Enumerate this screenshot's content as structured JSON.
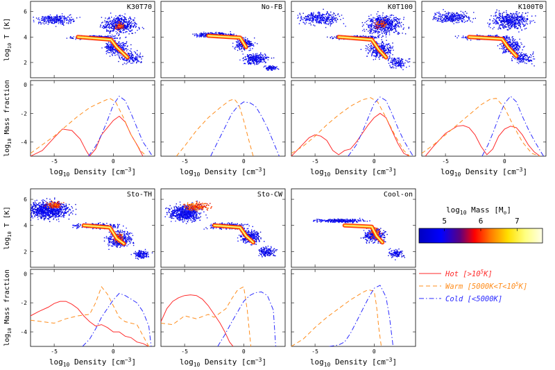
{
  "figure": {
    "colorbar": {
      "label_main": "log",
      "label_sub": "10",
      "label_rest": " Mass [M",
      "label_sun": "⊙",
      "label_close": "]",
      "ticks": [
        "5",
        "6",
        "7"
      ]
    },
    "legend": [
      {
        "label_main": "Hot [>10",
        "label_sup": "5",
        "label_end": "K]",
        "color": "#ff2a2a",
        "dash": "solid"
      },
      {
        "label_main": "Warm [5000K<T<10",
        "label_sup": "5",
        "label_end": "K]",
        "color": "#ff8c1a",
        "dash": "dashed"
      },
      {
        "label_main": "Cold [<5000K]",
        "label_sup": "",
        "label_end": "",
        "color": "#2a2aff",
        "dash": "dashdot"
      }
    ],
    "axis_text": {
      "temp_label": "log",
      "temp_sub": "10",
      "temp_rest": " T [K]",
      "frac_label": "log",
      "frac_sub": "10",
      "frac_rest": " Mass fraction",
      "x_label": "log",
      "x_sub": "10",
      "x_rest": " Density [cm",
      "x_sup": "−3",
      "x_close": "]"
    }
  },
  "chart_data": [
    {
      "type": "heatmap",
      "panel": "K30T70",
      "title": "K30T70",
      "xlim": [
        -7,
        3.5
      ],
      "ylim": [
        0.8,
        6.8
      ],
      "yticks": [
        "2",
        "4",
        "6"
      ],
      "colors": {
        "low": "#0000c0",
        "mid": "#ff3300",
        "high": "#ffffe0"
      },
      "note": "phase diagram"
    },
    {
      "type": "line",
      "panel": "K30T70",
      "xlim": [
        -7,
        3.5
      ],
      "ylim": [
        -5,
        0.3
      ],
      "xticks": [
        "-5",
        "0"
      ],
      "yticks": [
        "0",
        "-2",
        "-4"
      ],
      "series": [
        {
          "name": "Hot",
          "x": [
            -7,
            -6,
            -5,
            -4.3,
            -3.5,
            -2.8,
            -2.3,
            -2,
            -1.5,
            -1,
            -0.5,
            0,
            0.5,
            1,
            1.5,
            2,
            2.5
          ],
          "y": [
            -5,
            -4.6,
            -3.7,
            -3.1,
            -3.2,
            -3.8,
            -4.6,
            -5,
            -4.5,
            -3.5,
            -3,
            -2.5,
            -2.2,
            -2.6,
            -3.5,
            -4.2,
            -5
          ]
        },
        {
          "name": "Warm",
          "x": [
            -7,
            -6,
            -5,
            -4,
            -3,
            -2,
            -1,
            -0.3,
            0.2,
            0.8,
            1.5,
            2.3,
            2.8
          ],
          "y": [
            -4.8,
            -4.2,
            -3.6,
            -2.9,
            -2.2,
            -1.6,
            -1.2,
            -0.95,
            -1.2,
            -2.2,
            -3.5,
            -4.6,
            -5
          ]
        },
        {
          "name": "Cold",
          "x": [
            -2.1,
            -1.5,
            -1,
            -0.5,
            0,
            0.5,
            1,
            1.5,
            2,
            2.5,
            3,
            3.3
          ],
          "y": [
            -5,
            -4.3,
            -3.5,
            -2.5,
            -1.4,
            -0.8,
            -1.1,
            -2,
            -3,
            -4,
            -4.6,
            -5
          ]
        }
      ]
    },
    {
      "type": "heatmap",
      "panel": "No-FB",
      "title": "No-FB",
      "xlim": [
        -7,
        3.5
      ],
      "ylim": [
        0.8,
        6.8
      ],
      "note": "phase diagram"
    },
    {
      "type": "line",
      "panel": "No-FB",
      "xlim": [
        -7,
        3.5
      ],
      "ylim": [
        -5,
        0.3
      ],
      "xticks": [
        "-5",
        "0"
      ],
      "series": [
        {
          "name": "Warm",
          "x": [
            -5.7,
            -5,
            -4,
            -3,
            -2,
            -1.2,
            -0.8,
            -0.4,
            0,
            0.4,
            0.8
          ],
          "y": [
            -5,
            -4.3,
            -3.2,
            -2.3,
            -1.6,
            -1.1,
            -1.0,
            -1.4,
            -2.5,
            -3.8,
            -5
          ]
        },
        {
          "name": "Cold",
          "x": [
            -2.8,
            -2.2,
            -1.6,
            -1,
            -0.5,
            0,
            0.5,
            1,
            1.5,
            2,
            2.5,
            3
          ],
          "y": [
            -5,
            -4,
            -3,
            -2,
            -1.5,
            -1.2,
            -1.25,
            -1.5,
            -2.2,
            -3,
            -4,
            -5
          ]
        }
      ]
    },
    {
      "type": "heatmap",
      "panel": "K0T100",
      "title": "K0T100",
      "xlim": [
        -7,
        3.5
      ],
      "ylim": [
        0.8,
        6.8
      ],
      "note": "phase diagram"
    },
    {
      "type": "line",
      "panel": "K0T100",
      "xlim": [
        -7,
        3.5
      ],
      "ylim": [
        -5,
        0.3
      ],
      "xticks": [
        "-5",
        "0"
      ],
      "series": [
        {
          "name": "Hot",
          "x": [
            -7,
            -6.3,
            -5.5,
            -5,
            -4.5,
            -4,
            -3.5,
            -3,
            -2.5,
            -2,
            -1.5,
            -1,
            -0.5,
            0,
            0.5,
            1,
            1.5,
            2,
            2.5,
            3
          ],
          "y": [
            -5,
            -4.4,
            -3.7,
            -3.5,
            -3.6,
            -3.9,
            -4.6,
            -4.9,
            -4.6,
            -4.5,
            -4,
            -3.4,
            -2.8,
            -2.3,
            -2.0,
            -2.3,
            -3.2,
            -4.1,
            -4.8,
            -5
          ]
        },
        {
          "name": "Warm",
          "x": [
            -7,
            -6,
            -5,
            -4,
            -3,
            -2,
            -1,
            -0.3,
            0.3,
            1,
            1.8,
            2.5,
            3
          ],
          "y": [
            -4.8,
            -4.3,
            -3.6,
            -2.8,
            -2.1,
            -1.5,
            -1.05,
            -0.9,
            -1.2,
            -2.3,
            -3.6,
            -4.6,
            -5
          ]
        },
        {
          "name": "Cold",
          "x": [
            -2.2,
            -1.5,
            -1,
            -0.5,
            0,
            0.5,
            1,
            1.5,
            2,
            2.5,
            3,
            3.3
          ],
          "y": [
            -5,
            -4.2,
            -3.3,
            -2.3,
            -1.3,
            -0.85,
            -1.1,
            -2,
            -3,
            -3.9,
            -4.6,
            -5
          ]
        }
      ]
    },
    {
      "type": "heatmap",
      "panel": "K100T0",
      "title": "K100T0",
      "xlim": [
        -7,
        3.5
      ],
      "ylim": [
        0.8,
        6.8
      ],
      "note": "phase diagram"
    },
    {
      "type": "line",
      "panel": "K100T0",
      "xlim": [
        -7,
        3.5
      ],
      "ylim": [
        -5,
        0.3
      ],
      "xticks": [
        "-5",
        "0"
      ],
      "series": [
        {
          "name": "Hot",
          "x": [
            -6.7,
            -6,
            -5,
            -4,
            -3.5,
            -3,
            -2.5,
            -2,
            -1.5,
            -1,
            -0.5,
            0,
            0.5,
            1,
            1.5,
            2,
            2.5,
            3
          ],
          "y": [
            -5,
            -4.3,
            -3.4,
            -2.9,
            -2.85,
            -3.0,
            -3.5,
            -4.3,
            -4.9,
            -4.5,
            -3.6,
            -3.1,
            -2.9,
            -3.0,
            -3.5,
            -4.2,
            -4.7,
            -5
          ]
        },
        {
          "name": "Warm",
          "x": [
            -7,
            -6,
            -5,
            -4,
            -3,
            -2,
            -1.2,
            -0.7,
            0,
            0.7,
            1.5,
            2.3,
            3
          ],
          "y": [
            -4.8,
            -4.2,
            -3.5,
            -2.8,
            -2.1,
            -1.4,
            -1.0,
            -0.95,
            -1.6,
            -2.8,
            -4.0,
            -4.8,
            -5
          ]
        },
        {
          "name": "Cold",
          "x": [
            -1.9,
            -1.4,
            -1,
            -0.5,
            0,
            0.5,
            1,
            1.5,
            2,
            2.5,
            3,
            3.3
          ],
          "y": [
            -5,
            -4.2,
            -3.4,
            -2.3,
            -1.3,
            -0.8,
            -1.2,
            -2.2,
            -3.1,
            -3.9,
            -4.6,
            -5
          ]
        }
      ]
    },
    {
      "type": "heatmap",
      "panel": "Sto-TH",
      "title": "Sto-TH",
      "xlim": [
        -7,
        3.5
      ],
      "ylim": [
        0.8,
        6.8
      ],
      "yticks": [
        "2",
        "4",
        "6"
      ],
      "note": "phase diagram"
    },
    {
      "type": "line",
      "panel": "Sto-TH",
      "xlim": [
        -7,
        3.5
      ],
      "ylim": [
        -5,
        0.3
      ],
      "xticks": [
        "-5",
        "0"
      ],
      "yticks": [
        "0",
        "-2",
        "-4"
      ],
      "series": [
        {
          "name": "Hot",
          "x": [
            -7,
            -6.3,
            -5.5,
            -5,
            -4.5,
            -4,
            -3.5,
            -3,
            -2.5,
            -2,
            -1.5,
            -1,
            -0.5,
            0,
            0.5,
            1,
            1.5,
            2,
            2.5,
            3
          ],
          "y": [
            -2.9,
            -2.6,
            -2.3,
            -2.05,
            -1.9,
            -1.9,
            -2.1,
            -2.4,
            -2.9,
            -3.3,
            -3.6,
            -3.5,
            -3.7,
            -4.0,
            -4.0,
            -4.3,
            -4.4,
            -4.7,
            -4.8,
            -5
          ]
        },
        {
          "name": "Warm",
          "x": [
            -7,
            -6,
            -5,
            -4,
            -3,
            -2,
            -1.5,
            -1,
            -0.5,
            0,
            0.5,
            1,
            2,
            3
          ],
          "y": [
            -3.2,
            -3.3,
            -3.4,
            -3.1,
            -2.9,
            -2.8,
            -2.0,
            -0.9,
            -1.4,
            -2.2,
            -3.0,
            -3.3,
            -3.5,
            -5
          ]
        },
        {
          "name": "Cold",
          "x": [
            -2.6,
            -2,
            -1.5,
            -1,
            -0.5,
            0,
            0.5,
            1,
            1.5,
            2,
            2.5,
            3,
            3.2
          ],
          "y": [
            -5,
            -4.5,
            -3.8,
            -3.0,
            -2.4,
            -1.8,
            -1.35,
            -1.5,
            -1.75,
            -2.0,
            -2.6,
            -3.6,
            -5
          ]
        }
      ]
    },
    {
      "type": "heatmap",
      "panel": "Sto-CW",
      "title": "Sto-CW",
      "xlim": [
        -7,
        3.5
      ],
      "ylim": [
        0.8,
        6.8
      ],
      "note": "phase diagram"
    },
    {
      "type": "line",
      "panel": "Sto-CW",
      "xlim": [
        -7,
        3.5
      ],
      "ylim": [
        -5,
        0.3
      ],
      "xticks": [
        "-5",
        "0"
      ],
      "series": [
        {
          "name": "Hot",
          "x": [
            -7,
            -6.5,
            -6,
            -5.5,
            -5,
            -4.5,
            -4,
            -3.5,
            -3,
            -2.5,
            -2,
            -1.6,
            -1.2,
            -0.9
          ],
          "y": [
            -3.3,
            -2.4,
            -1.9,
            -1.65,
            -1.5,
            -1.45,
            -1.5,
            -1.75,
            -2.2,
            -2.8,
            -3.4,
            -4.0,
            -4.7,
            -5
          ]
        },
        {
          "name": "Warm",
          "x": [
            -7,
            -6,
            -5,
            -4,
            -3,
            -2.5,
            -2,
            -1.5,
            -1,
            -0.5,
            0,
            0.3,
            0.6
          ],
          "y": [
            -3.4,
            -3.5,
            -2.9,
            -3.1,
            -2.8,
            -3.0,
            -2.7,
            -2.4,
            -1.7,
            -1.1,
            -0.9,
            -2.5,
            -5
          ]
        },
        {
          "name": "Cold",
          "x": [
            -2.2,
            -1.6,
            -1,
            -0.5,
            0,
            0.5,
            1,
            1.5,
            2,
            2.5,
            2.7
          ],
          "y": [
            -5,
            -4.2,
            -3.3,
            -2.6,
            -1.9,
            -1.5,
            -1.3,
            -1.25,
            -1.5,
            -2.5,
            -5
          ]
        }
      ]
    },
    {
      "type": "heatmap",
      "panel": "Cool-on",
      "title": "Cool-on",
      "xlim": [
        -7,
        3.5
      ],
      "ylim": [
        0.8,
        6.8
      ],
      "note": "phase diagram"
    },
    {
      "type": "line",
      "panel": "Cool-on",
      "xlim": [
        -7,
        3.5
      ],
      "ylim": [
        -5,
        0.3
      ],
      "xticks": [
        "-5",
        "0"
      ],
      "series": [
        {
          "name": "Warm",
          "x": [
            -7,
            -6,
            -5,
            -4,
            -3,
            -2,
            -1,
            -0.5,
            0,
            0.2,
            0.4,
            0.6
          ],
          "y": [
            -5,
            -4.5,
            -3.7,
            -3.0,
            -2.4,
            -1.8,
            -1.3,
            -1.1,
            -1.2,
            -2.2,
            -3.8,
            -5
          ]
        },
        {
          "name": "Cold",
          "x": [
            -3.8,
            -3,
            -2.5,
            -2,
            -1.5,
            -1,
            -0.5,
            0,
            0.5,
            1,
            1.3,
            1.6
          ],
          "y": [
            -5,
            -4.9,
            -4.7,
            -4.1,
            -3.3,
            -2.5,
            -1.7,
            -1.0,
            -0.8,
            -1.6,
            -3.0,
            -5
          ]
        }
      ]
    }
  ]
}
